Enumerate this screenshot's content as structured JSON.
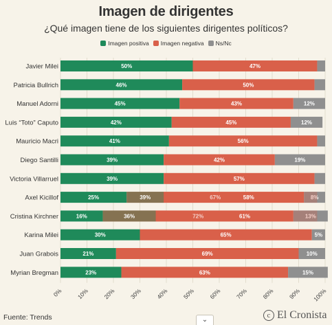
{
  "chart_data": {
    "type": "bar",
    "orientation": "horizontal",
    "stacked": true,
    "title": "Imagen de dirigentes",
    "subtitle": "¿Qué imagen tiene de los siguientes dirigentes políticos?",
    "legend_position": "top-center",
    "xlim": [
      0,
      100
    ],
    "x_ticks": [
      "0%",
      "10%",
      "20%",
      "30%",
      "40%",
      "50%",
      "60%",
      "70%",
      "80%",
      "90%",
      "100%"
    ],
    "series": [
      {
        "name": "Imagen positiva",
        "color": "#1f8a5a"
      },
      {
        "name": "Imagen negativa",
        "color": "#d9604a"
      },
      {
        "name": "Ns/Nc",
        "color": "#8f8f8f"
      }
    ],
    "categories": [
      "Javier Milei",
      "Patricia Bullrich",
      "Manuel Adorni",
      "Luis “Toto” Caputo",
      "Mauricio Macri",
      "Diego Santilli",
      "Victoria Villarruel",
      "Axel Kicillof",
      "Cristina Kirchner",
      "Karina Milei",
      "Juan Grabois",
      "Myrian Bregman"
    ],
    "rows": [
      {
        "positive": 50,
        "negative": 47,
        "nsnc": 3,
        "pos_label": "50%",
        "neg_label": "47%",
        "ns_label": ""
      },
      {
        "positive": 46,
        "negative": 50,
        "nsnc": 4,
        "pos_label": "46%",
        "neg_label": "50%",
        "ns_label": ""
      },
      {
        "positive": 45,
        "negative": 43,
        "nsnc": 12,
        "pos_label": "45%",
        "neg_label": "43%",
        "ns_label": "12%"
      },
      {
        "positive": 42,
        "negative": 45,
        "nsnc": 12,
        "pos_label": "42%",
        "neg_label": "45%",
        "ns_label": "12%"
      },
      {
        "positive": 41,
        "negative": 56,
        "nsnc": 3,
        "pos_label": "41%",
        "neg_label": "56%",
        "ns_label": ""
      },
      {
        "positive": 39,
        "negative": 42,
        "nsnc": 19,
        "pos_label": "39%",
        "neg_label": "42%",
        "ns_label": "19%"
      },
      {
        "positive": 39,
        "negative": 57,
        "nsnc": 4,
        "pos_label": "39%",
        "neg_label": "57%",
        "ns_label": ""
      },
      {
        "positive": 25,
        "negative": 67,
        "nsnc": 8,
        "pos_label": "25%",
        "neg_label": "67%",
        "ns_label": "8%",
        "overlay": {
          "positive": 39,
          "negative": 58,
          "pos_label": "39%",
          "neg_label": "58%"
        }
      },
      {
        "positive": 16,
        "negative": 72,
        "nsnc": 13,
        "pos_label": "16%",
        "neg_label": "72%",
        "ns_label": "13%",
        "overlay": {
          "positive": 36,
          "negative": 61,
          "pos_label": "36%",
          "neg_label": "61%"
        }
      },
      {
        "positive": 30,
        "negative": 65,
        "nsnc": 5,
        "pos_label": "30%",
        "neg_label": "65%",
        "ns_label": "5%"
      },
      {
        "positive": 21,
        "negative": 69,
        "nsnc": 10,
        "pos_label": "21%",
        "neg_label": "69%",
        "ns_label": "10%"
      },
      {
        "positive": 23,
        "negative": 63,
        "nsnc": 15,
        "pos_label": "23%",
        "neg_label": "63%",
        "ns_label": "15%"
      }
    ]
  },
  "footer": {
    "source": "Fuente: Trends",
    "brand": "El Cronista",
    "brand_icon_glyph": "c"
  },
  "controls": {
    "scroll_glyph": "⌄"
  }
}
